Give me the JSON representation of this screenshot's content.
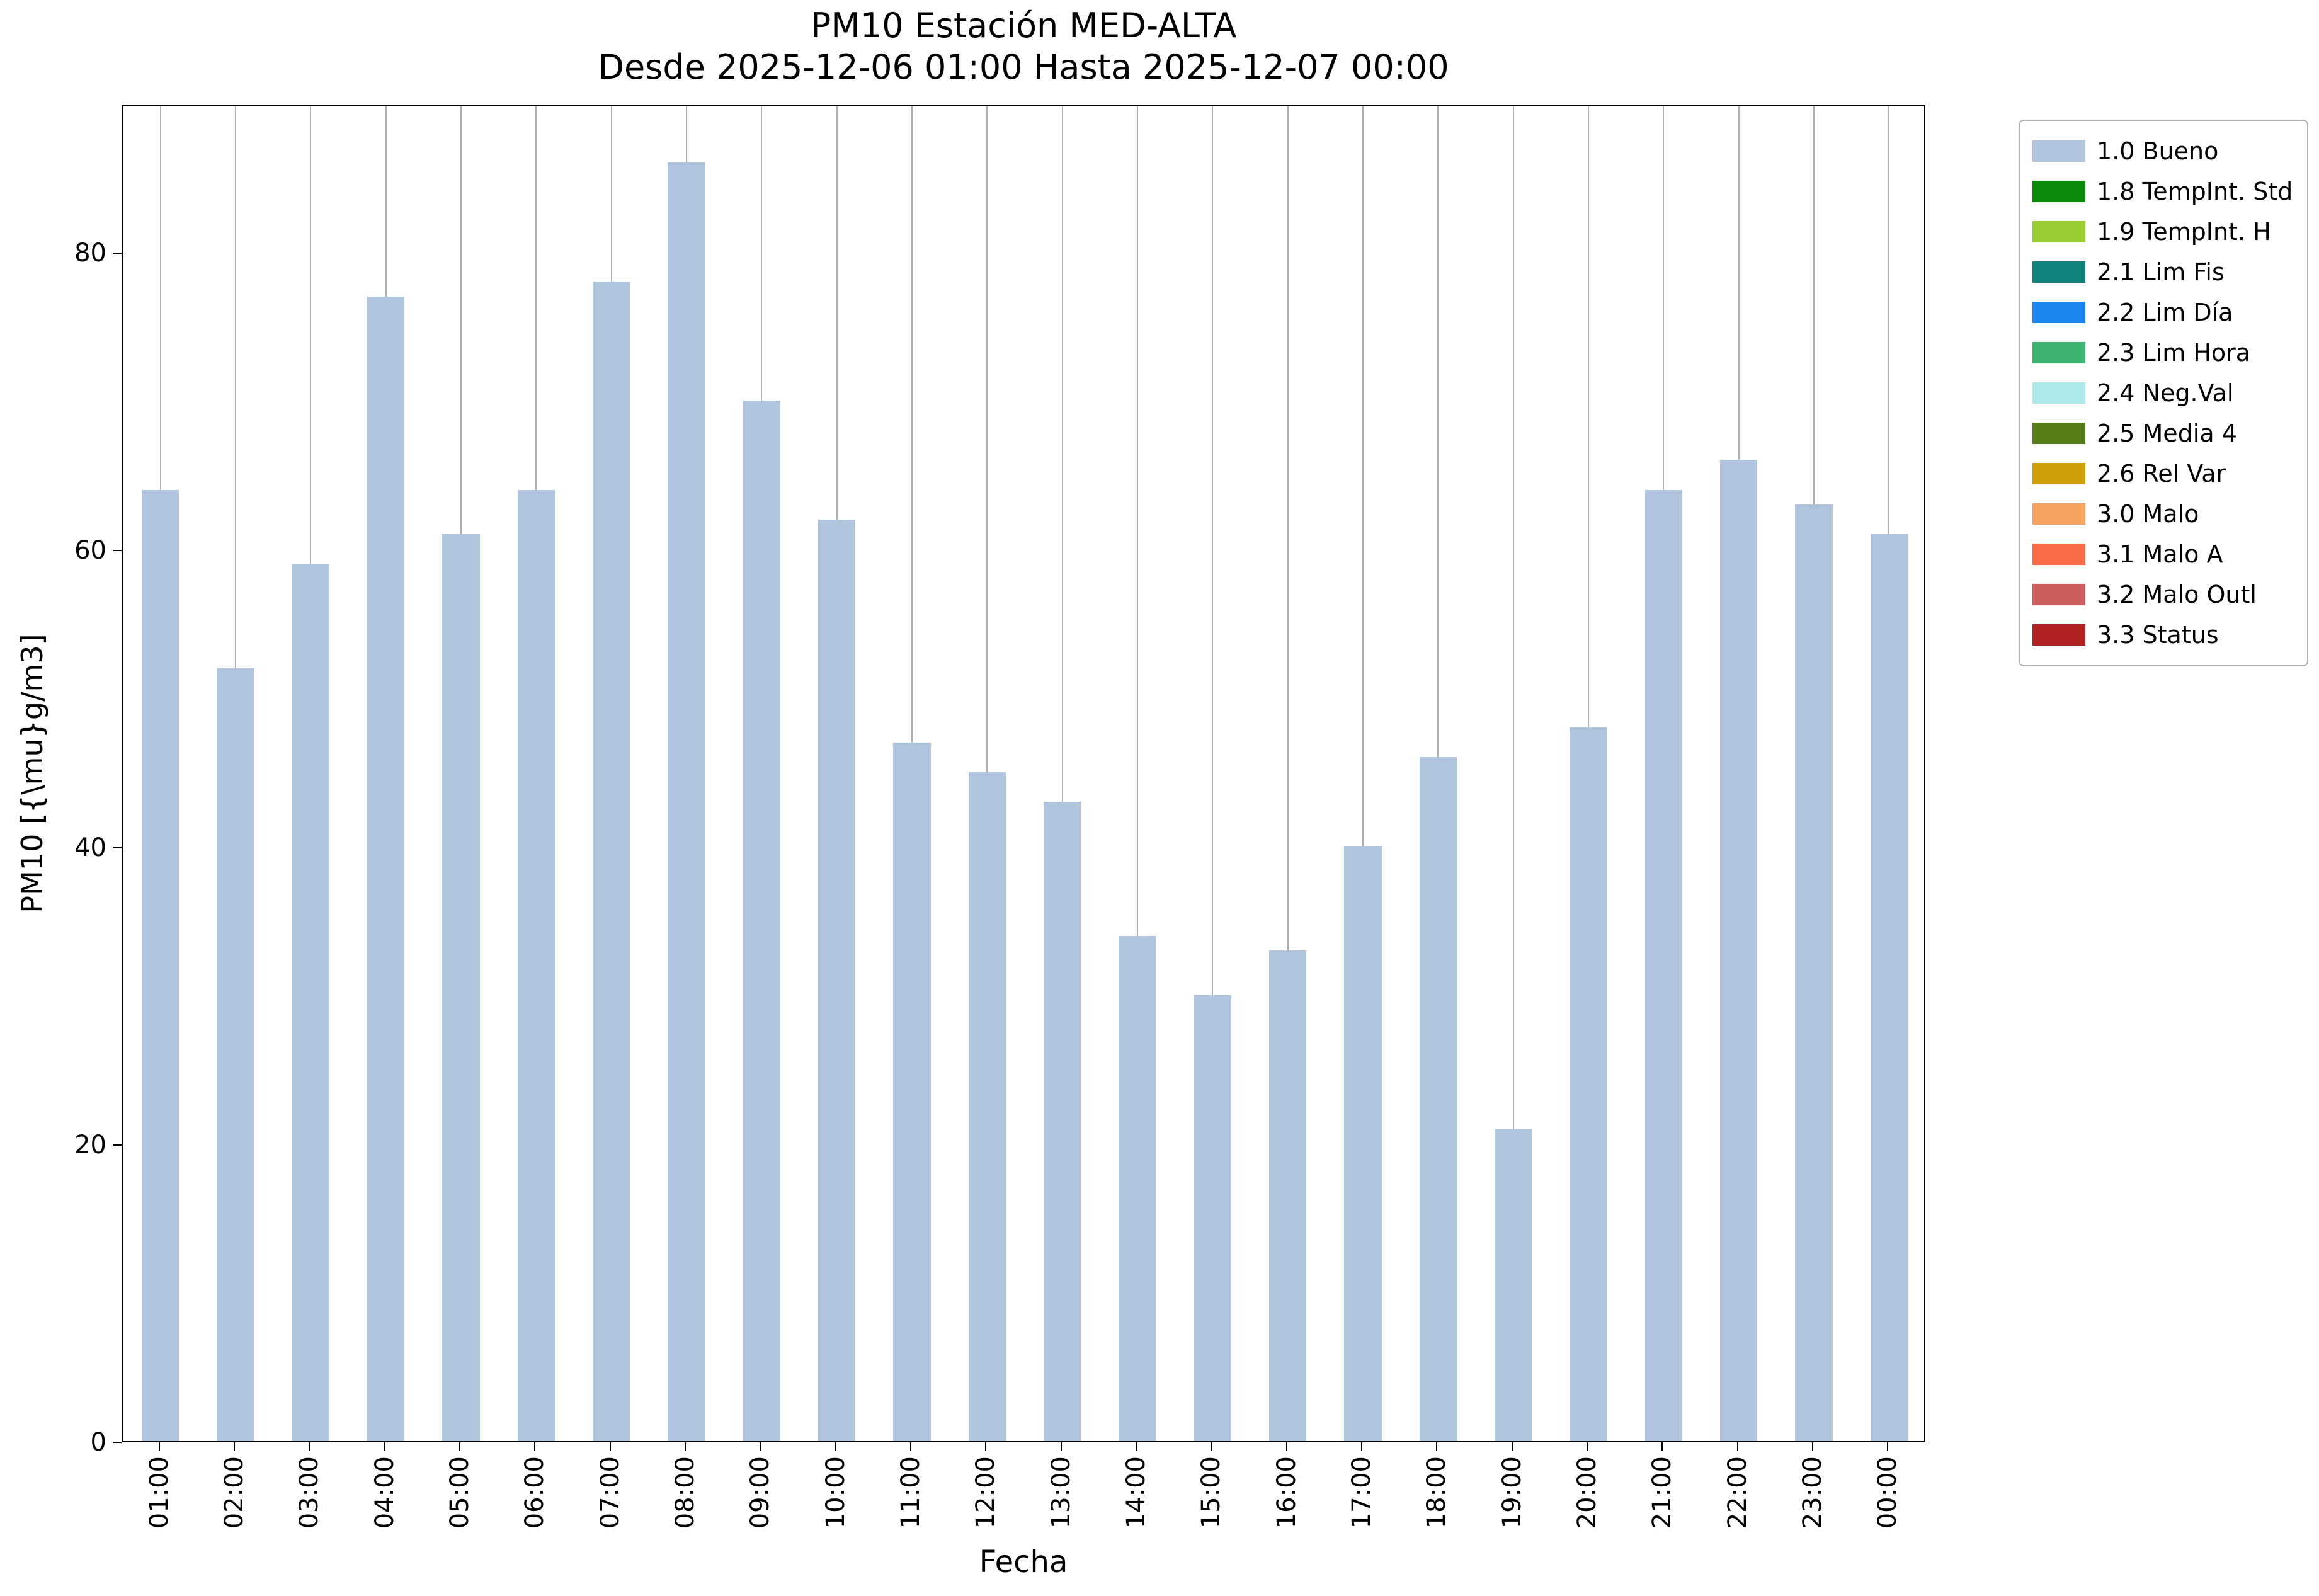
{
  "chart_data": {
    "type": "bar",
    "title": "PM10 Estación MED-ALTA",
    "subtitle": "Desde 2025-12-06 01:00 Hasta 2025-12-07 00:00",
    "xlabel": "Fecha",
    "ylabel": "PM10 [{\\mu}g/m3]",
    "categories": [
      "01:00",
      "02:00",
      "03:00",
      "04:00",
      "05:00",
      "06:00",
      "07:00",
      "08:00",
      "09:00",
      "10:00",
      "11:00",
      "12:00",
      "13:00",
      "14:00",
      "15:00",
      "16:00",
      "17:00",
      "18:00",
      "19:00",
      "20:00",
      "21:00",
      "22:00",
      "23:00",
      "00:00"
    ],
    "values": [
      64,
      52,
      59,
      77,
      61,
      64,
      78,
      86,
      70,
      62,
      47,
      45,
      43,
      34,
      30,
      33,
      40,
      46,
      21,
      48,
      64,
      66,
      63,
      61
    ],
    "ylim": [
      0,
      90
    ],
    "yticks": [
      0,
      20,
      40,
      60,
      80
    ],
    "bar_color": "#b0c4de",
    "grid": {
      "x": true,
      "y": false,
      "color": "#b0b0b0"
    },
    "legend": {
      "position": "outside-upper-right",
      "entries": [
        {
          "label": "1.0 Bueno",
          "color": "#b0c4de"
        },
        {
          "label": "1.8 TempInt. Std",
          "color": "#0c8a0c"
        },
        {
          "label": "1.9 TempInt. H",
          "color": "#9acd32"
        },
        {
          "label": "2.1 Lim Fis",
          "color": "#0f857d"
        },
        {
          "label": "2.2 Lim Día",
          "color": "#1e86f0"
        },
        {
          "label": "2.3 Lim Hora",
          "color": "#3cb371"
        },
        {
          "label": "2.4 Neg.Val",
          "color": "#aeeaea"
        },
        {
          "label": "2.5 Media 4",
          "color": "#567d18"
        },
        {
          "label": "2.6 Rel Var",
          "color": "#cf9f0a"
        },
        {
          "label": "3.0 Malo",
          "color": "#f4a460"
        },
        {
          "label": "3.1 Malo A",
          "color": "#f96a47"
        },
        {
          "label": "3.2 Malo Outl",
          "color": "#cd5c5c"
        },
        {
          "label": "3.3 Status",
          "color": "#b22222"
        }
      ]
    }
  }
}
